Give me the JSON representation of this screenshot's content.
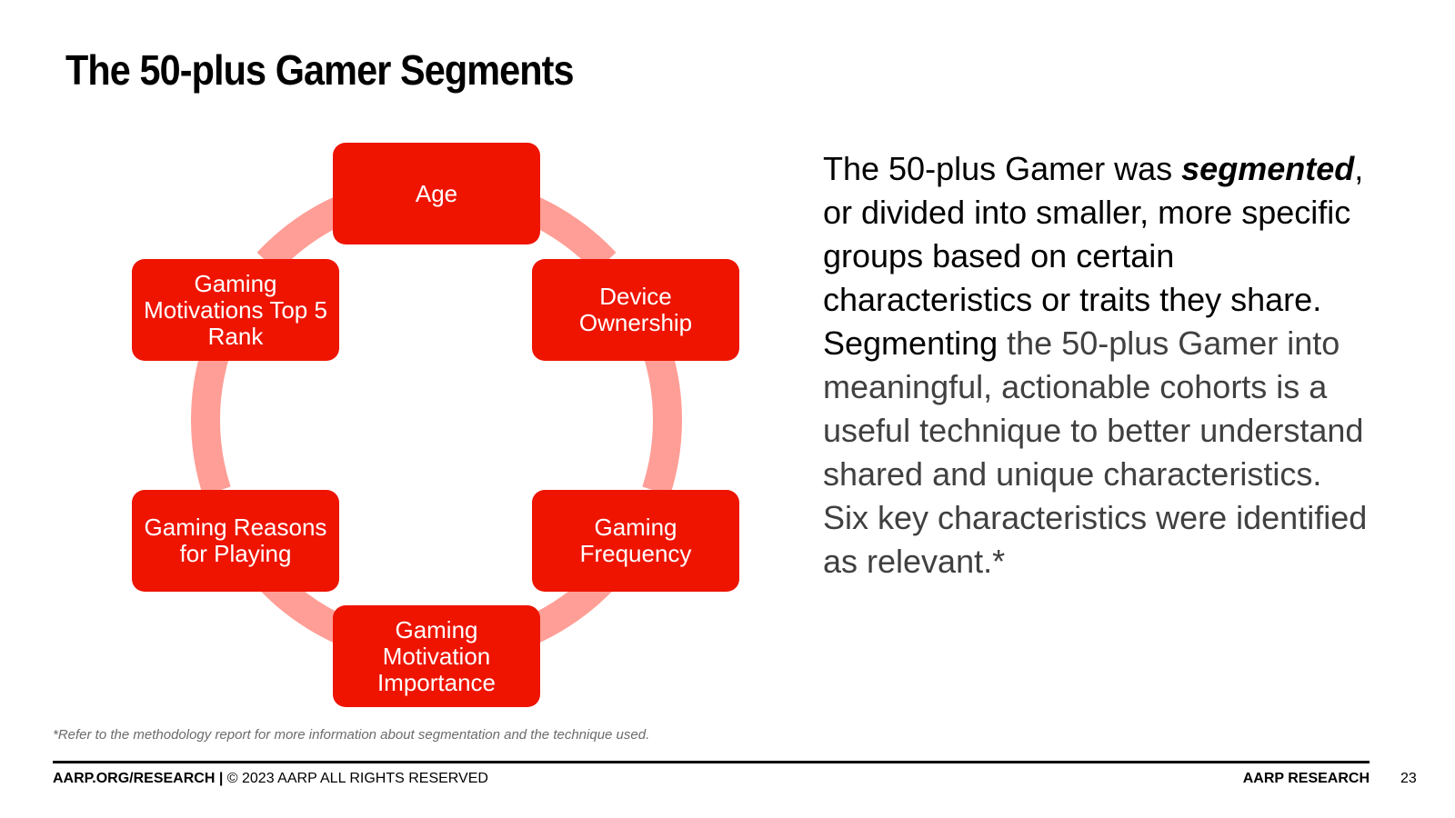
{
  "slide": {
    "title": "The 50-plus Gamer Segments",
    "page_number": "23"
  },
  "cycle": {
    "arrow_color": "#ff9e96",
    "node_color": "#ee1400",
    "nodes": [
      "Age",
      "Device Ownership",
      "Gaming Frequency",
      "Gaming Motivation Importance",
      "Gaming Reasons for Playing",
      "Gaming Motivations Top 5 Rank"
    ]
  },
  "body": {
    "p1_part1": "The 50-plus Gamer was ",
    "p1_emphasis": "segmented",
    "p1_part2": ", or divided into smaller, more specific groups based on certain characteristics or traits they share.",
    "p2_lead": "Segmenting",
    "p2_rest": " the 50-plus Gamer into meaningful, actionable cohorts is a useful technique to better understand shared and unique characteristics.",
    "p3": "Six key characteristics were identified as relevant.*"
  },
  "footnote": "*Refer to the methodology report for more information about segmentation and the technique used.",
  "footer": {
    "site": "AARP.ORG/RESEARCH |",
    "copyright": " © 2023 AARP ALL RIGHTS RESERVED",
    "brand": "AARP RESEARCH"
  }
}
